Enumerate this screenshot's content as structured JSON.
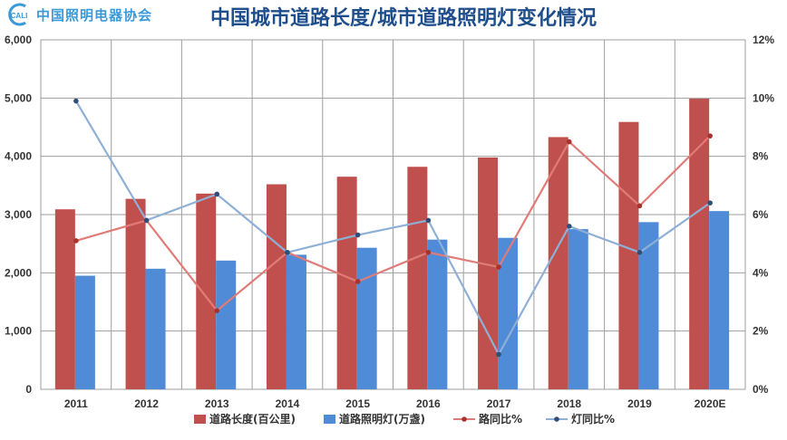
{
  "logo": {
    "mark_text": "CALI",
    "name": "中国照明电器协会"
  },
  "chart_data": {
    "type": "bar",
    "title": "中国城市道路长度/城市道路照明灯变化情况",
    "categories": [
      "2011",
      "2012",
      "2013",
      "2014",
      "2015",
      "2016",
      "2017",
      "2018",
      "2019",
      "2020E"
    ],
    "series": [
      {
        "name": "道路长度(百公里)",
        "kind": "bar",
        "axis": "left",
        "color": "#c0504d",
        "values": [
          3090,
          3270,
          3360,
          3520,
          3650,
          3820,
          3980,
          4330,
          4590,
          4990
        ]
      },
      {
        "name": "道路照明灯(万盏)",
        "kind": "bar",
        "axis": "left",
        "color": "#4f8bd6",
        "values": [
          1950,
          2070,
          2210,
          2310,
          2430,
          2570,
          2600,
          2750,
          2870,
          3060
        ]
      },
      {
        "name": "路同比%",
        "kind": "line",
        "axis": "right",
        "color": "#e07c78",
        "marker_color": "#a8322e",
        "values": [
          5.1,
          5.8,
          2.7,
          4.7,
          3.7,
          4.7,
          4.2,
          8.5,
          6.3,
          8.7
        ]
      },
      {
        "name": "灯同比%",
        "kind": "line",
        "axis": "right",
        "color": "#8fb0d6",
        "marker_color": "#2f4f7a",
        "values": [
          9.9,
          5.8,
          6.7,
          4.7,
          5.3,
          5.8,
          1.2,
          5.6,
          4.7,
          6.4
        ]
      }
    ],
    "y_left": {
      "min": 0,
      "max": 6000,
      "ticks": [
        "0",
        "1,000",
        "2,000",
        "3,000",
        "4,000",
        "5,000",
        "6,000"
      ]
    },
    "y_right": {
      "min": 0,
      "max": 12,
      "ticks": [
        "0%",
        "2%",
        "4%",
        "6%",
        "8%",
        "10%",
        "12%"
      ]
    },
    "grid": true,
    "legend_position": "bottom"
  }
}
